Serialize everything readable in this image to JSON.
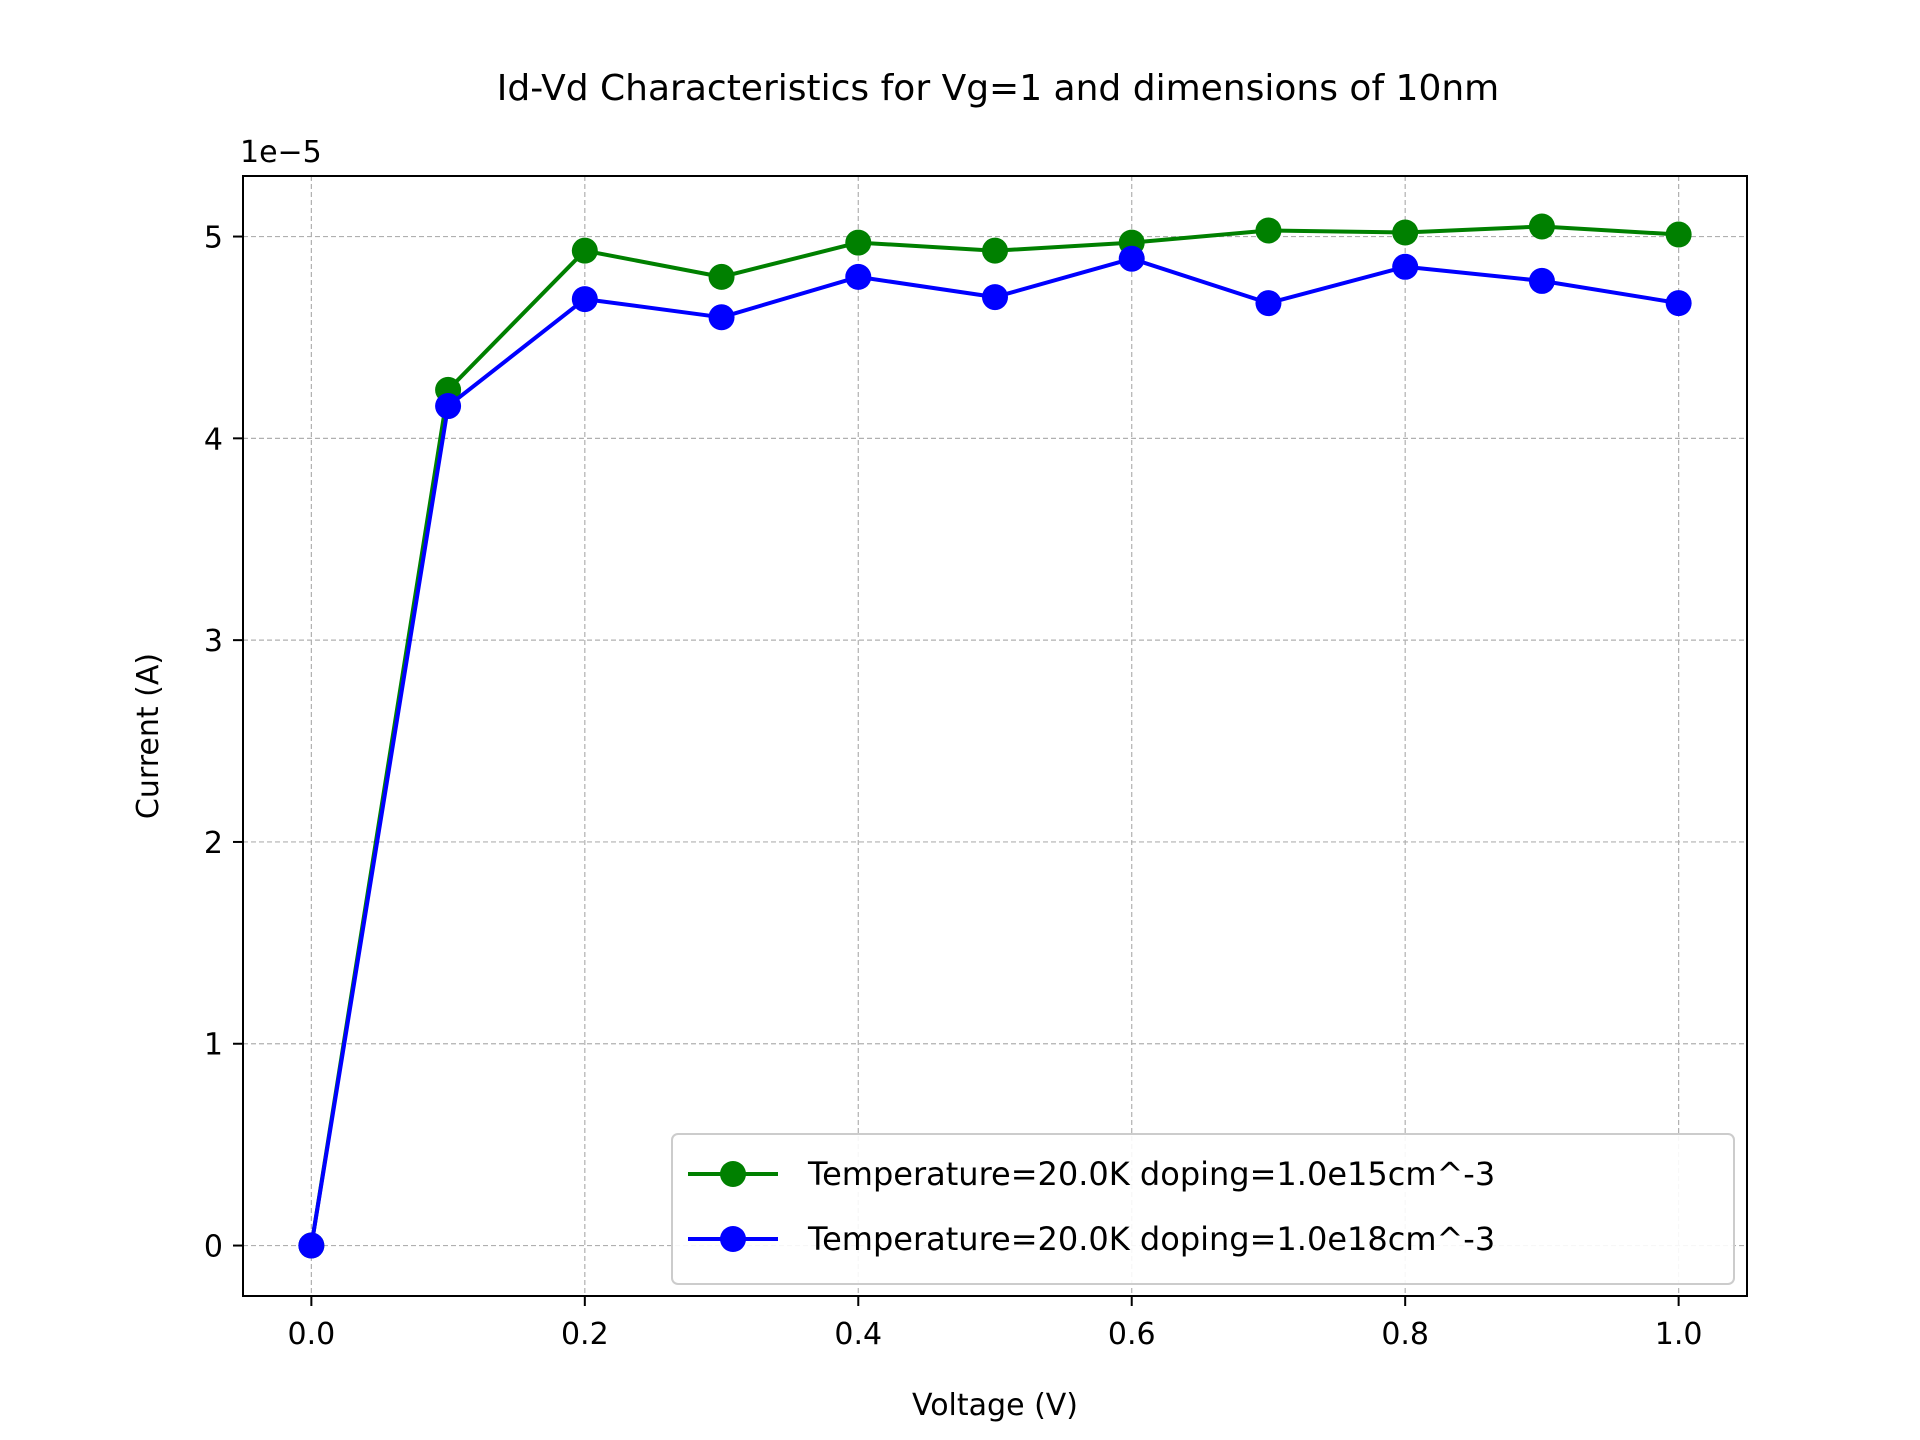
{
  "chart_data": {
    "type": "line",
    "title": "Id-Vd Characteristics for Vg=1 and dimensions of 10nm",
    "xlabel": "Voltage (V)",
    "ylabel": "Current (A)",
    "y_offset_label": "1e−5",
    "xlim": [
      -0.05,
      1.05
    ],
    "ylim": [
      -0.25,
      5.3
    ],
    "y_scale_note": "values in units of 1e-5 A",
    "xticks": [
      0.0,
      0.2,
      0.4,
      0.6,
      0.8,
      1.0
    ],
    "xtick_labels": [
      "0.0",
      "0.2",
      "0.4",
      "0.6",
      "0.8",
      "1.0"
    ],
    "yticks": [
      0,
      1,
      2,
      3,
      4,
      5
    ],
    "ytick_labels": [
      "0",
      "1",
      "2",
      "3",
      "4",
      "5"
    ],
    "grid": true,
    "legend_position": "lower-right",
    "x": [
      0.0,
      0.1,
      0.2,
      0.3,
      0.4,
      0.5,
      0.6,
      0.7,
      0.8,
      0.9,
      1.0
    ],
    "series": [
      {
        "name": "Temperature=20.0K doping=1.0e15cm^-3",
        "color": "#008000",
        "values": [
          0.0,
          4.24,
          4.93,
          4.8,
          4.97,
          4.93,
          4.97,
          5.03,
          5.02,
          5.05,
          5.01
        ]
      },
      {
        "name": "Temperature=20.0K doping=1.0e18cm^-3",
        "color": "#0000ff",
        "values": [
          0.0,
          4.16,
          4.69,
          4.6,
          4.8,
          4.7,
          4.89,
          4.67,
          4.85,
          4.78,
          4.67
        ]
      }
    ]
  }
}
